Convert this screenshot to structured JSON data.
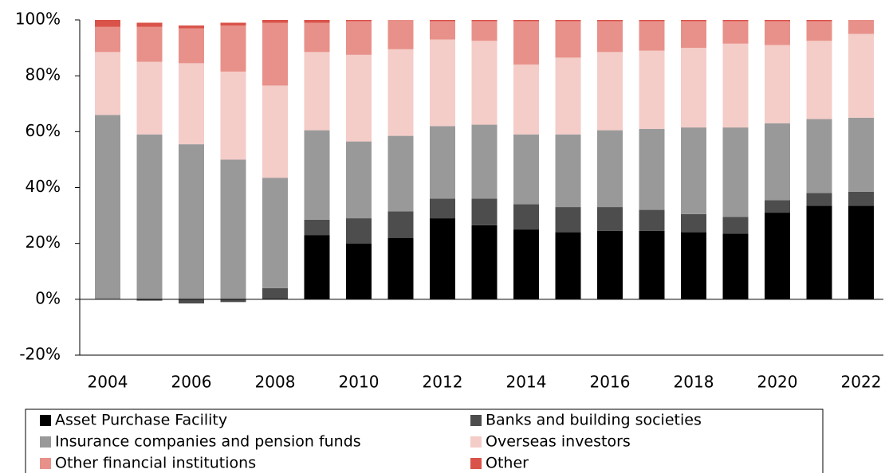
{
  "chart_data": {
    "type": "bar",
    "stacked": true,
    "categories": [
      "2004",
      null,
      "2006",
      null,
      "2008",
      null,
      "2010",
      null,
      "2012",
      null,
      "2014",
      null,
      "2016",
      null,
      "2018",
      null,
      "2020",
      null,
      "2022"
    ],
    "series": [
      {
        "name": "Asset Purchase Facility",
        "color": "#000000",
        "values": [
          0,
          0,
          0,
          0,
          0,
          23,
          20,
          22,
          29,
          26.5,
          25,
          24,
          24.5,
          24.5,
          24,
          23.5,
          31,
          33.5,
          33.5
        ]
      },
      {
        "name": "Banks and building societies",
        "color": "#4d4d4d",
        "values": [
          0,
          -0.5,
          -1.5,
          -1,
          4,
          5.5,
          9,
          9.5,
          7,
          9.5,
          9,
          9,
          8.5,
          7.5,
          6.5,
          6,
          4.5,
          4.5,
          5
        ]
      },
      {
        "name": "Insurance companies and pension funds",
        "color": "#999999",
        "values": [
          66,
          59,
          55.5,
          50,
          39.5,
          32,
          27.5,
          27,
          26,
          26.5,
          25,
          26,
          27.5,
          29,
          31,
          32,
          27.5,
          26.5,
          26.5
        ]
      },
      {
        "name": "Overseas investors",
        "color": "#f4ccc8",
        "values": [
          22.5,
          26,
          29,
          31.5,
          33,
          28,
          31,
          31,
          31,
          30,
          25,
          27.5,
          28,
          28,
          28.5,
          30,
          28,
          28,
          30
        ]
      },
      {
        "name": "Other financial institutions",
        "color": "#e8918a",
        "values": [
          9,
          12.5,
          12.5,
          16.5,
          22.5,
          10.5,
          12,
          10.5,
          6.5,
          7,
          15.5,
          13,
          11,
          10.5,
          9.5,
          8,
          8.5,
          7,
          5
        ]
      },
      {
        "name": "Other",
        "color": "#d9534a",
        "values": [
          2.5,
          1.5,
          1,
          1,
          1,
          1,
          0.5,
          0,
          0.5,
          0.5,
          0.5,
          0.5,
          0.5,
          0.5,
          0.5,
          0.5,
          0.5,
          0.5,
          0
        ]
      }
    ],
    "ylim": [
      -20,
      100
    ],
    "yticks": [
      {
        "value": -20,
        "label": "-20%"
      },
      {
        "value": 0,
        "label": "0%"
      },
      {
        "value": 20,
        "label": "20%"
      },
      {
        "value": 40,
        "label": "40%"
      },
      {
        "value": 60,
        "label": "60%"
      },
      {
        "value": 80,
        "label": "80%"
      },
      {
        "value": 100,
        "label": "100%"
      }
    ],
    "legend": "bottom"
  }
}
